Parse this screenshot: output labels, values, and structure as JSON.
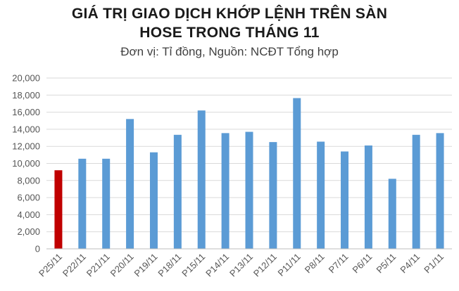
{
  "title_line1": "GIÁ TRỊ GIAO DỊCH KHỚP LỆNH TRÊN SÀN",
  "title_line2": "HOSE TRONG THÁNG 11",
  "subtitle": "Đơn vị: Tỉ đồng, Nguồn: NCĐT Tổng hợp",
  "colors": {
    "bar": "#5b9bd5",
    "highlight": "#c00000",
    "grid": "#d9d9d9",
    "axis": "#bfbfbf"
  },
  "chart_data": {
    "type": "bar",
    "title": "GIÁ TRỊ GIAO DỊCH KHỚP LỆNH TRÊN SÀN HOSE TRONG THÁNG 11",
    "subtitle": "Đơn vị: Tỉ đồng, Nguồn: NCĐT Tổng hợp",
    "categories": [
      "P25/11",
      "P22/11",
      "P21/11",
      "P20/11",
      "P19/11",
      "P18/11",
      "P15/11",
      "P14/11",
      "P13/11",
      "P12/11",
      "P11/11",
      "P8/11",
      "P7/11",
      "P6/11",
      "P5/11",
      "P4/11",
      "P1/11"
    ],
    "values": [
      9200,
      10550,
      10550,
      15200,
      11300,
      13350,
      16200,
      13550,
      13700,
      12500,
      17650,
      12550,
      11400,
      12100,
      8200,
      13350,
      13550
    ],
    "highlight_index": 0,
    "y_ticks": [
      "0",
      "2,000",
      "4,000",
      "6,000",
      "8,000",
      "10,000",
      "12,000",
      "14,000",
      "16,000",
      "18,000",
      "20,000"
    ],
    "ylim": [
      0,
      20000
    ],
    "grid": true,
    "xlabel": "",
    "ylabel": ""
  }
}
